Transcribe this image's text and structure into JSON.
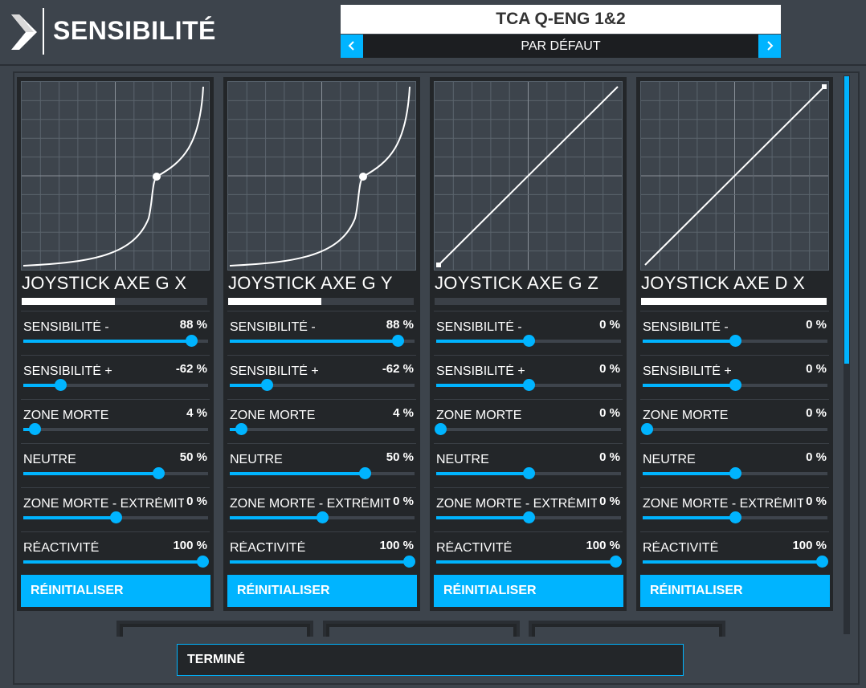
{
  "header": {
    "title": "SENSIBILITÉ",
    "device": "TCA Q-ENG 1&2",
    "profile": "PAR DÉFAUT"
  },
  "colors": {
    "accent": "#00b4ff",
    "background": "#3d444c",
    "card": "#232629"
  },
  "axes": [
    {
      "name": "JOYSTICK AXE G X",
      "preview_fraction": 0.5,
      "curve": "exp",
      "settings": [
        {
          "label": "SENSIBILITÉ -",
          "value": "88 %",
          "level": 0.91
        },
        {
          "label": "SENSIBILITÉ +",
          "value": "-62 %",
          "level": 0.2
        },
        {
          "label": "ZONE MORTE",
          "value": "4 %",
          "level": 0.06
        },
        {
          "label": "NEUTRE",
          "value": "50 %",
          "level": 0.73
        },
        {
          "label": "ZONE MORTE - EXTRÉMITÉ",
          "value": "0 %",
          "level": 0.5
        },
        {
          "label": "RÉACTIVITÉ",
          "value": "100 %",
          "level": 0.97
        }
      ],
      "reset_label": "RÉINITIALISER"
    },
    {
      "name": "JOYSTICK AXE G Y",
      "preview_fraction": 0.5,
      "curve": "exp",
      "settings": [
        {
          "label": "SENSIBILITÉ -",
          "value": "88 %",
          "level": 0.91
        },
        {
          "label": "SENSIBILITÉ +",
          "value": "-62 %",
          "level": 0.2
        },
        {
          "label": "ZONE MORTE",
          "value": "4 %",
          "level": 0.06
        },
        {
          "label": "NEUTRE",
          "value": "50 %",
          "level": 0.73
        },
        {
          "label": "ZONE MORTE - EXTRÉMITÉ",
          "value": "0 %",
          "level": 0.5
        },
        {
          "label": "RÉACTIVITÉ",
          "value": "100 %",
          "level": 0.97
        }
      ],
      "reset_label": "RÉINITIALISER"
    },
    {
      "name": "JOYSTICK AXE G Z",
      "preview_fraction": 0,
      "curve": "linear-low",
      "settings": [
        {
          "label": "SENSIBILITÉ -",
          "value": "0 %",
          "level": 0.5
        },
        {
          "label": "SENSIBILITÉ +",
          "value": "0 %",
          "level": 0.5
        },
        {
          "label": "ZONE MORTE",
          "value": "0 %",
          "level": 0.02
        },
        {
          "label": "NEUTRE",
          "value": "0 %",
          "level": 0.5
        },
        {
          "label": "ZONE MORTE - EXTRÉMITÉ",
          "value": "0 %",
          "level": 0.5
        },
        {
          "label": "RÉACTIVITÉ",
          "value": "100 %",
          "level": 0.97
        }
      ],
      "reset_label": "RÉINITIALISER"
    },
    {
      "name": "JOYSTICK AXE D X",
      "preview_fraction": 1,
      "curve": "linear-high",
      "settings": [
        {
          "label": "SENSIBILITÉ -",
          "value": "0 %",
          "level": 0.5
        },
        {
          "label": "SENSIBILITÉ +",
          "value": "0 %",
          "level": 0.5
        },
        {
          "label": "ZONE MORTE",
          "value": "0 %",
          "level": 0.02
        },
        {
          "label": "NEUTRE",
          "value": "0 %",
          "level": 0.5
        },
        {
          "label": "ZONE MORTE - EXTRÉMITÉ",
          "value": "0 %",
          "level": 0.5
        },
        {
          "label": "RÉACTIVITÉ",
          "value": "100 %",
          "level": 0.97
        }
      ],
      "reset_label": "RÉINITIALISER"
    }
  ],
  "footer": {
    "done_label": "TERMINÉ"
  }
}
